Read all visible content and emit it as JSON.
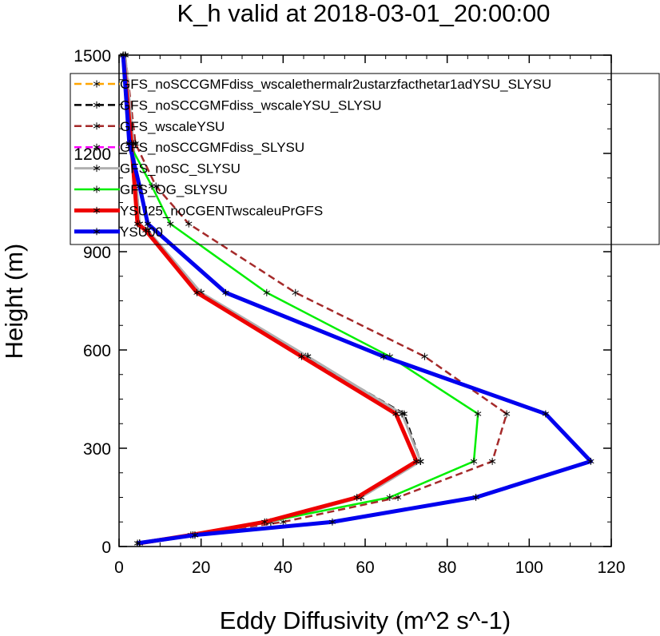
{
  "chart_data": {
    "type": "line",
    "title": "K_h valid at 2018-03-01_20:00:00",
    "xlabel": "Eddy Diffusivity (m^2 s^-1)",
    "ylabel": "Height (m)",
    "xlim": [
      0,
      120
    ],
    "ylim": [
      0,
      1500
    ],
    "x_ticks": [
      0,
      20,
      40,
      60,
      80,
      100,
      120
    ],
    "y_ticks": [
      0,
      300,
      600,
      900,
      1200,
      1500
    ],
    "x_tick_labels": [
      "0",
      "20",
      "40",
      "60",
      "80",
      "100",
      "120"
    ],
    "y_tick_labels": [
      "0",
      "300",
      "600",
      "900",
      "1200",
      "1500"
    ],
    "grid": false,
    "legend_position": "top-right",
    "series": [
      {
        "name": "GFS_noSCCGMFdiss_wscalethermalr2ustarzfacthetar1adYSU_SLYSU",
        "color": "#FFA500",
        "dash": "dash",
        "width": 2.5,
        "points": [
          [
            5,
            10
          ],
          [
            18.5,
            35
          ],
          [
            37,
            75
          ],
          [
            59,
            150
          ],
          [
            73.5,
            260
          ],
          [
            69,
            405
          ],
          [
            46,
            580
          ],
          [
            20,
            775
          ],
          [
            7,
            965
          ],
          [
            5,
            985
          ],
          [
            3.5,
            1230
          ],
          [
            1.5,
            1500
          ]
        ]
      },
      {
        "name": "GFS_noSCCGMFdiss_wscaleYSU_SLYSU",
        "color": "#000000",
        "dash": "dash",
        "width": 2.5,
        "points": [
          [
            5,
            10
          ],
          [
            18.5,
            35
          ],
          [
            37,
            75
          ],
          [
            59,
            150
          ],
          [
            73.5,
            260
          ],
          [
            69.5,
            405
          ],
          [
            45.5,
            580
          ],
          [
            20,
            775
          ],
          [
            7,
            965
          ],
          [
            5,
            985
          ],
          [
            3.5,
            1230
          ],
          [
            1.5,
            1500
          ]
        ]
      },
      {
        "name": "GFS_wscaleYSU",
        "color": "#A52A2A",
        "dash": "dash",
        "width": 2.5,
        "points": [
          [
            5,
            10
          ],
          [
            18,
            35
          ],
          [
            40,
            75
          ],
          [
            68,
            150
          ],
          [
            91,
            260
          ],
          [
            94.5,
            405
          ],
          [
            74.5,
            580
          ],
          [
            43,
            775
          ],
          [
            17,
            985
          ],
          [
            9,
            1100
          ],
          [
            4,
            1230
          ],
          [
            1.5,
            1500
          ]
        ]
      },
      {
        "name": "GFS_noSCCGMFdiss_SLYSU",
        "color": "#FF00FF",
        "dash": "dash",
        "width": 2.5,
        "points": [
          [
            5,
            10
          ],
          [
            18.5,
            35
          ],
          [
            37,
            75
          ],
          [
            59,
            150
          ],
          [
            73.5,
            260
          ],
          [
            69,
            405
          ],
          [
            46,
            580
          ],
          [
            20,
            775
          ],
          [
            7,
            965
          ],
          [
            5,
            985
          ],
          [
            3.5,
            1230
          ],
          [
            1.5,
            1500
          ]
        ]
      },
      {
        "name": "GFS_noSC_SLYSU",
        "color": "#B0B0B0",
        "dash": "solid",
        "width": 3,
        "points": [
          [
            5,
            10
          ],
          [
            18.5,
            35
          ],
          [
            37,
            75
          ],
          [
            59,
            150
          ],
          [
            73.5,
            260
          ],
          [
            69,
            405
          ],
          [
            46,
            580
          ],
          [
            20,
            775
          ],
          [
            7,
            965
          ],
          [
            5,
            985
          ],
          [
            3.5,
            1230
          ],
          [
            1.5,
            1500
          ]
        ]
      },
      {
        "name": "GFS_OG_SLYSU",
        "color": "#00EE00",
        "dash": "solid",
        "width": 2.5,
        "points": [
          [
            5,
            10
          ],
          [
            18,
            35
          ],
          [
            36,
            75
          ],
          [
            66,
            150
          ],
          [
            86.5,
            260
          ],
          [
            87.5,
            405
          ],
          [
            66,
            580
          ],
          [
            36,
            775
          ],
          [
            12.5,
            985
          ],
          [
            8,
            1100
          ],
          [
            2.5,
            1230
          ],
          [
            1,
            1500
          ]
        ]
      },
      {
        "name": "YSU25_noCGENTwscaleuPrGFS",
        "color": "#EE0000",
        "dash": "solid",
        "width": 5,
        "points": [
          [
            5,
            10
          ],
          [
            17.5,
            35
          ],
          [
            35.5,
            75
          ],
          [
            58,
            150
          ],
          [
            72.5,
            260
          ],
          [
            67.5,
            405
          ],
          [
            44.5,
            580
          ],
          [
            19,
            775
          ],
          [
            6.5,
            965
          ],
          [
            4.5,
            985
          ],
          [
            3,
            1230
          ],
          [
            1,
            1500
          ]
        ]
      },
      {
        "name": "YSU00",
        "color": "#0000EE",
        "dash": "solid",
        "width": 5,
        "points": [
          [
            4.5,
            10
          ],
          [
            18.5,
            35
          ],
          [
            52,
            75
          ],
          [
            87,
            150
          ],
          [
            115,
            260
          ],
          [
            104,
            405
          ],
          [
            64.5,
            580
          ],
          [
            26,
            775
          ],
          [
            7,
            985
          ],
          [
            5,
            1100
          ],
          [
            2.5,
            1230
          ],
          [
            1,
            1500
          ]
        ]
      }
    ]
  }
}
